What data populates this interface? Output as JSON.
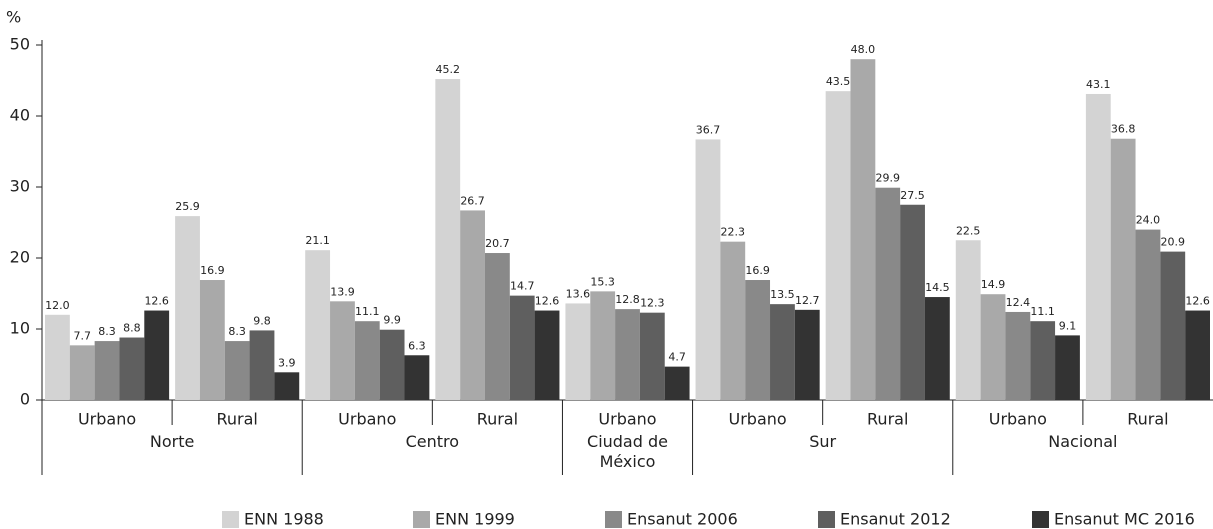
{
  "chart_data": {
    "type": "bar",
    "y_label": "%",
    "groups": [
      {
        "label": "Norte",
        "categories": [
          "Urbano",
          "Rural"
        ]
      },
      {
        "label": "Centro",
        "categories": [
          "Urbano",
          "Rural"
        ]
      },
      {
        "label": "Ciudad de México",
        "categories": [
          "Urbano"
        ]
      },
      {
        "label": "Sur",
        "categories": [
          "Urbano",
          "Rural"
        ]
      },
      {
        "label": "Nacional",
        "categories": [
          "Urbano",
          "Rural"
        ]
      }
    ],
    "series": [
      {
        "name": "ENN 1988",
        "color": "#d3d3d3",
        "values": [
          12.0,
          25.9,
          21.1,
          45.2,
          13.6,
          36.7,
          43.5,
          22.5,
          43.1
        ],
        "value_labels": [
          "12.0",
          "25.9",
          "21.1",
          "45.2",
          "13.6",
          "36.7",
          "43.5",
          "22.5",
          "43.1"
        ]
      },
      {
        "name": "ENN 1999",
        "color": "#a9a9a9",
        "values": [
          7.7,
          16.9,
          13.9,
          26.7,
          15.3,
          22.3,
          48.0,
          14.9,
          36.8
        ],
        "value_labels": [
          "7.7",
          "16.9",
          "13.9",
          "26.7",
          "15.3",
          "22.3",
          "48.0",
          "14.9",
          "36.8"
        ]
      },
      {
        "name": "Ensanut 2006",
        "color": "#898989",
        "values": [
          8.3,
          8.3,
          11.1,
          20.7,
          12.8,
          16.9,
          29.9,
          12.4,
          24.0
        ],
        "value_labels": [
          "8.3",
          "8.3",
          "11.1",
          "20.7",
          "12.8",
          "16.9",
          "29.9",
          "12.4",
          "24.0"
        ]
      },
      {
        "name": "Ensanut 2012",
        "color": "#5f5f5f",
        "values": [
          8.8,
          9.8,
          9.9,
          14.7,
          12.3,
          13.5,
          27.5,
          11.1,
          20.9
        ],
        "value_labels": [
          "8.8",
          "9.8",
          "9.9",
          "14.7",
          "12.3",
          "13.5",
          "27.5",
          "11.1",
          "20.9"
        ]
      },
      {
        "name": "Ensanut MC 2016",
        "color": "#333333",
        "values": [
          12.6,
          3.9,
          6.3,
          12.6,
          4.7,
          12.7,
          14.5,
          9.1,
          12.6
        ],
        "value_labels": [
          "12.6",
          "3.9",
          "6.3",
          "12.6",
          "4.7",
          "12.7",
          "14.5",
          "9.1",
          "12.6"
        ]
      }
    ],
    "ylim": [
      0,
      50
    ],
    "yticks": [
      0,
      10,
      20,
      30,
      40,
      50
    ],
    "grid": false,
    "legend": "bottom"
  }
}
